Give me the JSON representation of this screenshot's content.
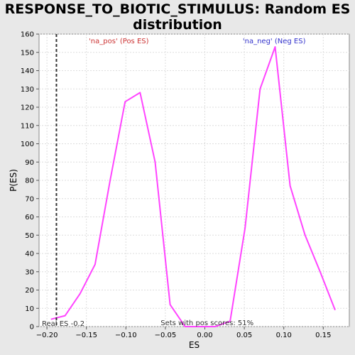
{
  "chart_data": {
    "type": "line",
    "title_line1": "RESPONSE_TO_BIOTIC_STIMULUS: Random ES",
    "title_line2": "distribution",
    "xlabel": "ES",
    "ylabel": "P(ES)",
    "xlim": [
      -0.21,
      0.183
    ],
    "ylim": [
      0,
      160
    ],
    "x_ticks": [
      -0.2,
      -0.15,
      -0.1,
      -0.05,
      0.0,
      0.05,
      0.1,
      0.15
    ],
    "x_tick_labels": [
      "−0.20",
      "−0.15",
      "−0.10",
      "−0.05",
      "0.00",
      "0.05",
      "0.10",
      "0.15"
    ],
    "y_ticks": [
      0,
      10,
      20,
      30,
      40,
      50,
      60,
      70,
      80,
      90,
      100,
      110,
      120,
      130,
      140,
      150,
      160
    ],
    "grid": true,
    "series": [
      {
        "color": "#ff44ff",
        "x": [
          -0.195,
          -0.177,
          -0.158,
          -0.139,
          -0.12,
          -0.101,
          -0.082,
          -0.063,
          -0.044,
          -0.025,
          -0.006,
          0.013,
          0.032,
          0.051,
          0.07,
          0.089,
          0.108,
          0.127,
          0.146,
          0.165
        ],
        "y": [
          4,
          6,
          18,
          34,
          80,
          123,
          128,
          90,
          12,
          0,
          0,
          0,
          3,
          54,
          130,
          153,
          77,
          50,
          30,
          9
        ]
      }
    ],
    "real_es": {
      "x": -0.188,
      "label": "Real ES -0.2"
    },
    "annotations": {
      "pos_label": "'na_pos' (Pos ES)",
      "pos_color": "#cc3333",
      "neg_label": "'na_neg' (Neg ES)",
      "neg_color": "#3333cc",
      "pos_scores": "Sets with pos scores: 51%"
    }
  }
}
